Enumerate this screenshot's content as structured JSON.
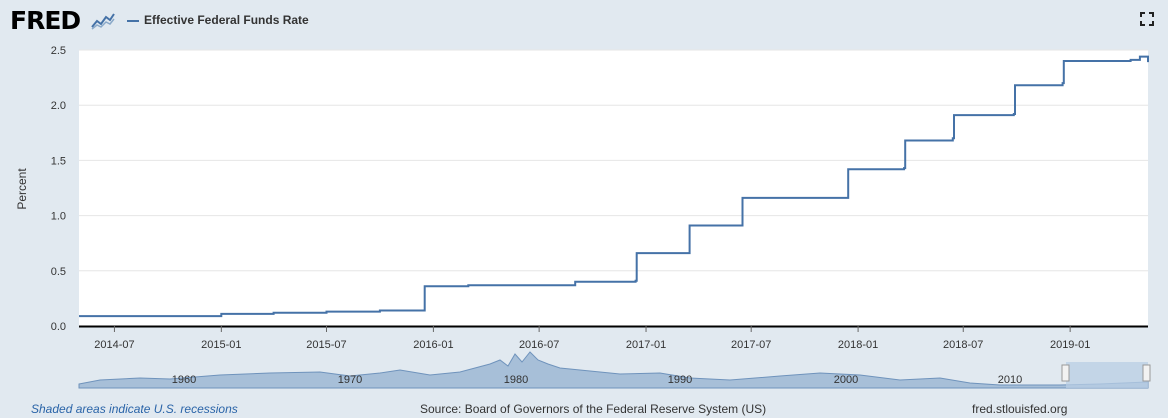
{
  "header": {
    "logo_text": "FRED",
    "legend_label": "Effective Federal Funds Rate"
  },
  "colors": {
    "series": "#4572a7",
    "background": "#e1e9f0",
    "plot_background": "#ffffff",
    "navigator_fill": "#a7bfd8",
    "link": "#2a64a8"
  },
  "icons": [
    "fred-graph-icon",
    "fullscreen-icon"
  ],
  "footer": {
    "recession_note": "Shaded areas indicate U.S. recessions",
    "source": "Source: Board of Governors of the Federal Reserve System (US)",
    "site": "fred.stlouisfed.org"
  },
  "navigator": {
    "tick_labels": [
      "1960",
      "1970",
      "1980",
      "1990",
      "2000",
      "2010"
    ],
    "selected_range": [
      "2014-05",
      "2019-05"
    ]
  },
  "chart_data": {
    "type": "line",
    "title": "Effective Federal Funds Rate",
    "xlabel": "",
    "ylabel": "Percent",
    "xlim": [
      "2014-05-01",
      "2019-05-15"
    ],
    "ylim": [
      0,
      2.5
    ],
    "yticks": [
      0.0,
      0.5,
      1.0,
      1.5,
      2.0,
      2.5
    ],
    "ytick_labels": [
      "0.0",
      "0.5",
      "1.0",
      "1.5",
      "2.0",
      "2.5"
    ],
    "xticks": [
      "2014-07-01",
      "2015-01-01",
      "2015-07-01",
      "2016-01-01",
      "2016-07-01",
      "2017-01-01",
      "2017-07-01",
      "2018-01-01",
      "2018-07-01",
      "2019-01-01"
    ],
    "xtick_labels": [
      "2014-07",
      "2015-01",
      "2015-07",
      "2016-01",
      "2016-07",
      "2017-01",
      "2017-07",
      "2018-01",
      "2018-07",
      "2019-01"
    ],
    "grid": "horizontal",
    "legend": "top-left",
    "series": [
      {
        "name": "Effective Federal Funds Rate",
        "color": "#4572a7",
        "x": [
          "2014-05-01",
          "2014-07-01",
          "2014-10-01",
          "2015-01-01",
          "2015-04-01",
          "2015-07-01",
          "2015-10-01",
          "2015-12-15",
          "2015-12-17",
          "2016-03-01",
          "2016-06-01",
          "2016-09-01",
          "2016-12-14",
          "2016-12-16",
          "2017-03-15",
          "2017-03-17",
          "2017-06-14",
          "2017-06-16",
          "2017-12-13",
          "2017-12-15",
          "2018-03-21",
          "2018-03-23",
          "2018-06-13",
          "2018-06-15",
          "2018-09-26",
          "2018-09-28",
          "2018-12-19",
          "2018-12-21",
          "2019-03-01",
          "2019-04-15",
          "2019-05-01",
          "2019-05-10",
          "2019-05-15"
        ],
        "values": [
          0.09,
          0.09,
          0.09,
          0.11,
          0.12,
          0.13,
          0.14,
          0.14,
          0.36,
          0.37,
          0.37,
          0.4,
          0.41,
          0.66,
          0.66,
          0.91,
          0.91,
          1.16,
          1.16,
          1.42,
          1.43,
          1.68,
          1.7,
          1.91,
          1.92,
          2.18,
          2.2,
          2.4,
          2.4,
          2.41,
          2.44,
          2.44,
          2.39
        ]
      }
    ]
  }
}
